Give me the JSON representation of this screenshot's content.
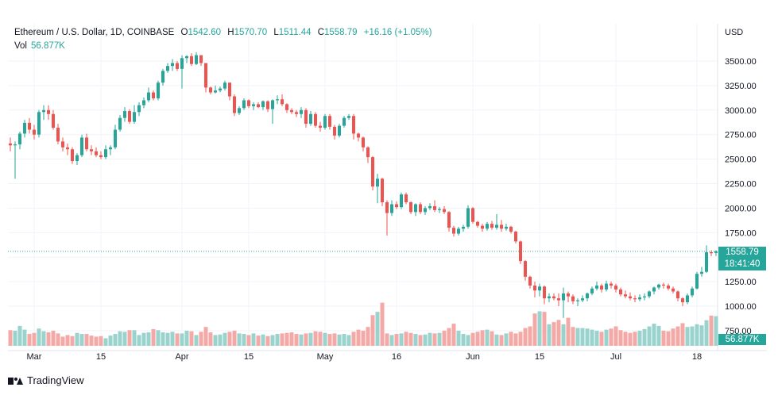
{
  "header": {
    "symbol": "Ethereum / U.S. Dollar, 1D, COINBASE",
    "open_label": "O",
    "open": "1542.60",
    "high_label": "H",
    "high": "1570.70",
    "low_label": "L",
    "low": "1511.44",
    "close_label": "C",
    "close": "1558.79",
    "change": "+16.16 (+1.05%)",
    "vol_label": "Vol",
    "vol": "56.877K"
  },
  "axis": {
    "unit": "USD"
  },
  "price_tag": {
    "price": "1558.79",
    "countdown": "18:41:40"
  },
  "vol_tag": "56.877K",
  "brand": "TradingView",
  "colors": {
    "up": "#26a69a",
    "down": "#ef5350",
    "up_vol": "#9ad3cd",
    "down_vol": "#f4a9a7",
    "grid": "#f0f3fa"
  },
  "chart_data": {
    "type": "candlestick",
    "title": "Ethereum / U.S. Dollar, 1D, COINBASE",
    "ylabel": "USD",
    "ylim": [
      650,
      3700
    ],
    "y_ticks": [
      750,
      1000,
      1250,
      1500,
      1750,
      2000,
      2250,
      2500,
      2750,
      3000,
      3250,
      3500
    ],
    "y_tick_labels": [
      "750.00",
      "1000.00",
      "1250.00",
      "1500.00",
      "1750.00",
      "2000.00",
      "2250.00",
      "2500.00",
      "2750.00",
      "3000.00",
      "3250.00",
      "3500.00"
    ],
    "x_ticks": [
      {
        "label": "Mar",
        "index": 5
      },
      {
        "label": "15",
        "index": 19
      },
      {
        "label": "Apr",
        "index": 36
      },
      {
        "label": "15",
        "index": 50
      },
      {
        "label": "May",
        "index": 66
      },
      {
        "label": "16",
        "index": 81
      },
      {
        "label": "Jun",
        "index": 97
      },
      {
        "label": "15",
        "index": 111
      },
      {
        "label": "Jul",
        "index": 127
      },
      {
        "label": "18",
        "index": 144
      }
    ],
    "last_price": 1558.79,
    "series": {
      "ohlc": [
        [
          2660,
          2720,
          2580,
          2640
        ],
        [
          2640,
          2680,
          2300,
          2650
        ],
        [
          2650,
          2780,
          2600,
          2760
        ],
        [
          2760,
          2900,
          2720,
          2870
        ],
        [
          2870,
          2920,
          2760,
          2800
        ],
        [
          2800,
          2850,
          2700,
          2750
        ],
        [
          2750,
          3000,
          2720,
          2980
        ],
        [
          2980,
          3050,
          2900,
          3000
        ],
        [
          3000,
          3050,
          2900,
          2960
        ],
        [
          2960,
          3000,
          2800,
          2820
        ],
        [
          2820,
          2860,
          2650,
          2680
        ],
        [
          2680,
          2720,
          2580,
          2620
        ],
        [
          2620,
          2660,
          2540,
          2600
        ],
        [
          2600,
          2620,
          2450,
          2480
        ],
        [
          2480,
          2560,
          2440,
          2540
        ],
        [
          2540,
          2750,
          2520,
          2720
        ],
        [
          2720,
          2760,
          2580,
          2600
        ],
        [
          2600,
          2640,
          2540,
          2580
        ],
        [
          2580,
          2620,
          2520,
          2540
        ],
        [
          2540,
          2580,
          2500,
          2520
        ],
        [
          2520,
          2640,
          2500,
          2600
        ],
        [
          2600,
          2640,
          2540,
          2620
        ],
        [
          2620,
          2850,
          2600,
          2800
        ],
        [
          2800,
          2950,
          2780,
          2920
        ],
        [
          2920,
          3030,
          2880,
          2990
        ],
        [
          2990,
          3010,
          2860,
          2880
        ],
        [
          2880,
          3050,
          2860,
          2980
        ],
        [
          2980,
          3080,
          2940,
          3050
        ],
        [
          3050,
          3130,
          3020,
          3100
        ],
        [
          3100,
          3230,
          3080,
          3180
        ],
        [
          3180,
          3200,
          3100,
          3120
        ],
        [
          3120,
          3300,
          3100,
          3280
        ],
        [
          3280,
          3420,
          3250,
          3400
        ],
        [
          3400,
          3480,
          3380,
          3450
        ],
        [
          3450,
          3520,
          3400,
          3480
        ],
        [
          3480,
          3500,
          3400,
          3420
        ],
        [
          3420,
          3560,
          3220,
          3530
        ],
        [
          3530,
          3560,
          3480,
          3550
        ],
        [
          3550,
          3580,
          3450,
          3470
        ],
        [
          3470,
          3590,
          3460,
          3560
        ],
        [
          3560,
          3560,
          3450,
          3480
        ],
        [
          3480,
          3480,
          3180,
          3230
        ],
        [
          3230,
          3240,
          3160,
          3180
        ],
        [
          3180,
          3250,
          3170,
          3200
        ],
        [
          3200,
          3240,
          3180,
          3220
        ],
        [
          3220,
          3300,
          3200,
          3280
        ],
        [
          3280,
          3280,
          3100,
          3140
        ],
        [
          3140,
          3160,
          2940,
          2970
        ],
        [
          2970,
          3040,
          2950,
          3020
        ],
        [
          3020,
          3120,
          3000,
          3100
        ],
        [
          3100,
          3110,
          3020,
          3040
        ],
        [
          3040,
          3080,
          3000,
          3060
        ],
        [
          3060,
          3080,
          3020,
          3030
        ],
        [
          3030,
          3100,
          3000,
          3090
        ],
        [
          3090,
          3100,
          2980,
          3010
        ],
        [
          3010,
          3110,
          2860,
          3100
        ],
        [
          3100,
          3150,
          3060,
          3110
        ],
        [
          3110,
          3160,
          3040,
          3060
        ],
        [
          3060,
          3070,
          2970,
          3000
        ],
        [
          3000,
          3020,
          2960,
          2980
        ],
        [
          2980,
          3000,
          2930,
          2960
        ],
        [
          2960,
          3030,
          2920,
          3000
        ],
        [
          3000,
          3020,
          2820,
          2860
        ],
        [
          2860,
          2990,
          2840,
          2960
        ],
        [
          2960,
          2980,
          2820,
          2840
        ],
        [
          2840,
          2880,
          2780,
          2820
        ],
        [
          2820,
          2960,
          2800,
          2940
        ],
        [
          2940,
          2960,
          2800,
          2830
        ],
        [
          2830,
          2850,
          2700,
          2740
        ],
        [
          2740,
          2860,
          2720,
          2840
        ],
        [
          2840,
          2940,
          2820,
          2920
        ],
        [
          2920,
          2960,
          2900,
          2940
        ],
        [
          2940,
          2960,
          2700,
          2760
        ],
        [
          2760,
          2770,
          2680,
          2720
        ],
        [
          2720,
          2730,
          2580,
          2620
        ],
        [
          2620,
          2630,
          2460,
          2520
        ],
        [
          2520,
          2530,
          2180,
          2220
        ],
        [
          2220,
          2350,
          2050,
          2300
        ],
        [
          2300,
          2310,
          2020,
          2060
        ],
        [
          2060,
          2080,
          1720,
          1950
        ],
        [
          1950,
          2080,
          1920,
          2040
        ],
        [
          2040,
          2070,
          1990,
          2010
        ],
        [
          2010,
          2160,
          1990,
          2140
        ],
        [
          2140,
          2160,
          2040,
          2060
        ],
        [
          2060,
          2070,
          1940,
          1960
        ],
        [
          1960,
          2050,
          1920,
          2040
        ],
        [
          2040,
          2060,
          1940,
          1960
        ],
        [
          1960,
          2020,
          1930,
          2000
        ],
        [
          2000,
          2050,
          1980,
          2020
        ],
        [
          2020,
          2080,
          1960,
          1980
        ],
        [
          1980,
          2010,
          1950,
          1990
        ],
        [
          1990,
          2020,
          1940,
          1960
        ],
        [
          1960,
          1970,
          1760,
          1800
        ],
        [
          1800,
          1820,
          1710,
          1740
        ],
        [
          1740,
          1810,
          1720,
          1790
        ],
        [
          1790,
          1830,
          1760,
          1810
        ],
        [
          1810,
          2030,
          1790,
          2000
        ],
        [
          2000,
          2010,
          1840,
          1860
        ],
        [
          1860,
          1870,
          1800,
          1820
        ],
        [
          1820,
          1840,
          1760,
          1790
        ],
        [
          1790,
          1860,
          1770,
          1840
        ],
        [
          1840,
          1870,
          1780,
          1800
        ],
        [
          1800,
          1940,
          1780,
          1830
        ],
        [
          1830,
          1880,
          1760,
          1790
        ],
        [
          1790,
          1840,
          1770,
          1810
        ],
        [
          1810,
          1820,
          1740,
          1760
        ],
        [
          1760,
          1770,
          1640,
          1660
        ],
        [
          1660,
          1670,
          1430,
          1460
        ],
        [
          1460,
          1470,
          1260,
          1300
        ],
        [
          1300,
          1310,
          1180,
          1210
        ],
        [
          1210,
          1250,
          1090,
          1160
        ],
        [
          1160,
          1230,
          1100,
          1200
        ],
        [
          1200,
          1210,
          1020,
          1080
        ],
        [
          1080,
          1130,
          1040,
          1100
        ],
        [
          1100,
          1130,
          1060,
          1080
        ],
        [
          1080,
          1130,
          1000,
          1060
        ],
        [
          1060,
          1190,
          880,
          1130
        ],
        [
          1130,
          1150,
          1040,
          1100
        ],
        [
          1100,
          1120,
          1020,
          1050
        ],
        [
          1050,
          1080,
          1000,
          1060
        ],
        [
          1060,
          1110,
          1040,
          1080
        ],
        [
          1080,
          1140,
          1050,
          1130
        ],
        [
          1130,
          1200,
          1110,
          1180
        ],
        [
          1180,
          1250,
          1160,
          1210
        ],
        [
          1210,
          1230,
          1140,
          1170
        ],
        [
          1170,
          1260,
          1150,
          1230
        ],
        [
          1230,
          1250,
          1180,
          1210
        ],
        [
          1210,
          1230,
          1140,
          1170
        ],
        [
          1170,
          1190,
          1100,
          1120
        ],
        [
          1120,
          1160,
          1080,
          1100
        ],
        [
          1100,
          1140,
          1060,
          1080
        ],
        [
          1080,
          1110,
          1040,
          1070
        ],
        [
          1070,
          1120,
          1050,
          1090
        ],
        [
          1090,
          1130,
          1060,
          1100
        ],
        [
          1100,
          1160,
          1080,
          1150
        ],
        [
          1150,
          1200,
          1120,
          1190
        ],
        [
          1190,
          1230,
          1170,
          1220
        ],
        [
          1220,
          1240,
          1180,
          1210
        ],
        [
          1210,
          1230,
          1160,
          1180
        ],
        [
          1180,
          1200,
          1130,
          1150
        ],
        [
          1150,
          1160,
          1050,
          1080
        ],
        [
          1080,
          1090,
          1000,
          1040
        ],
        [
          1040,
          1130,
          1020,
          1110
        ],
        [
          1110,
          1200,
          1090,
          1180
        ],
        [
          1180,
          1350,
          1170,
          1330
        ],
        [
          1330,
          1400,
          1300,
          1350
        ],
        [
          1350,
          1620,
          1340,
          1550
        ],
        [
          1550,
          1570,
          1510,
          1540
        ],
        [
          1542.6,
          1570.7,
          1511.44,
          1558.79
        ]
      ],
      "volume": [
        58,
        56,
        74,
        60,
        44,
        48,
        64,
        54,
        50,
        56,
        46,
        34,
        40,
        36,
        48,
        44,
        44,
        38,
        34,
        36,
        28,
        38,
        44,
        54,
        52,
        58,
        58,
        40,
        48,
        50,
        62,
        58,
        50,
        48,
        52,
        46,
        46,
        56,
        54,
        40,
        52,
        70,
        50,
        40,
        42,
        48,
        52,
        56,
        46,
        44,
        40,
        46,
        38,
        42,
        36,
        40,
        44,
        46,
        48,
        50,
        44,
        42,
        46,
        48,
        54,
        52,
        48,
        44,
        46,
        42,
        44,
        40,
        52,
        60,
        56,
        70,
        114,
        126,
        160,
        46,
        40,
        44,
        46,
        52,
        48,
        44,
        40,
        42,
        48,
        46,
        48,
        56,
        66,
        82,
        56,
        44,
        40,
        48,
        52,
        58,
        60,
        54,
        42,
        40,
        46,
        52,
        46,
        52,
        66,
        72,
        120,
        128,
        126,
        80,
        88,
        96,
        80,
        104,
        70,
        66,
        66,
        64,
        60,
        56,
        52,
        60,
        64,
        72,
        58,
        52,
        48,
        52,
        56,
        62,
        72,
        82,
        74,
        56,
        54,
        64,
        72,
        84,
        70,
        72,
        80,
        76,
        95,
        112,
        110
      ]
    }
  }
}
